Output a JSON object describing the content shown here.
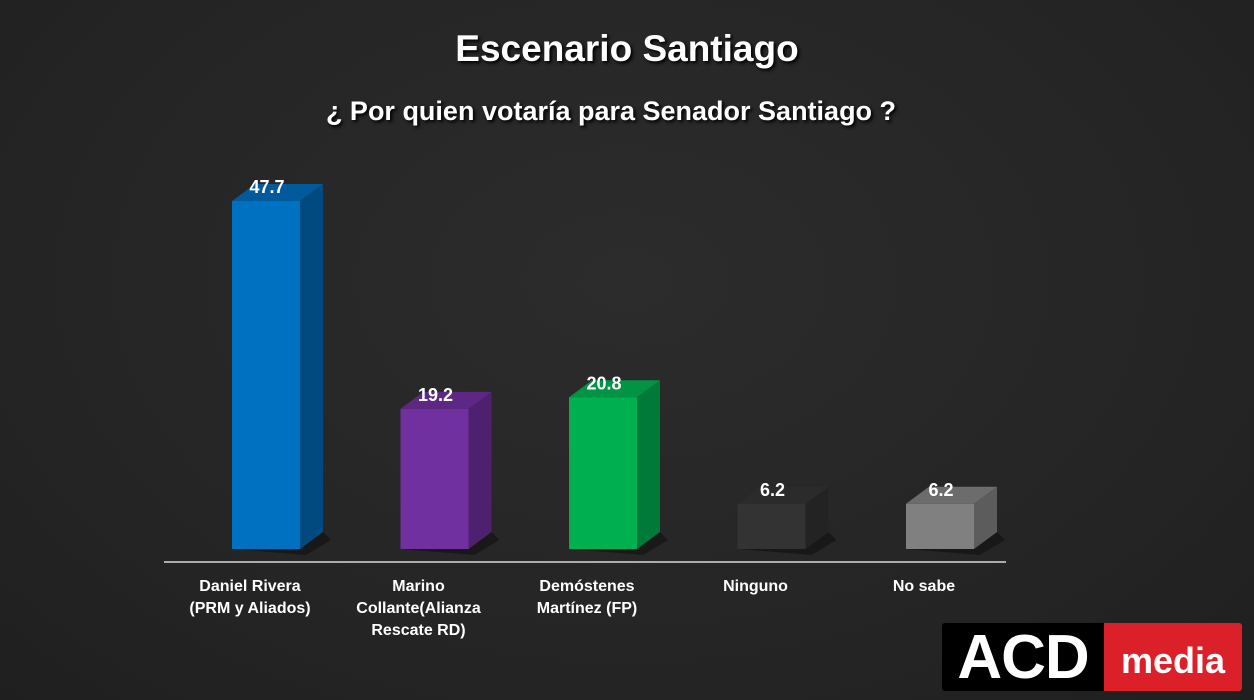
{
  "chart_data": {
    "type": "bar",
    "title": "Escenario Santiago",
    "subtitle": "¿ Por quien votaría para Senador Santiago ?",
    "categories": [
      "Daniel Rivera\n(PRM y Aliados)",
      "Marino\nCollante(Alianza\nRescate RD)",
      "Demóstenes\nMartínez (FP)",
      "Ninguno",
      "No sabe"
    ],
    "values": [
      47.7,
      19.2,
      20.8,
      6.2,
      6.2
    ],
    "value_labels": [
      "47.7",
      "19.2",
      "20.8",
      "6.2",
      "6.2"
    ],
    "colors": [
      "#0070c0",
      "#7030a0",
      "#00b050",
      "#333333",
      "#808080"
    ],
    "side_colors": [
      "#004a80",
      "#4e2170",
      "#007a38",
      "#232323",
      "#5c5c5c"
    ],
    "top_colors": [
      "#005a9c",
      "#5c2884",
      "#009444",
      "#2b2b2b",
      "#6c6c6c"
    ],
    "xlabel": "",
    "ylabel": "",
    "ylim": [
      0,
      50
    ],
    "grid": false,
    "legend": "none"
  },
  "logo": {
    "part1": "ACD",
    "part2": "media"
  }
}
